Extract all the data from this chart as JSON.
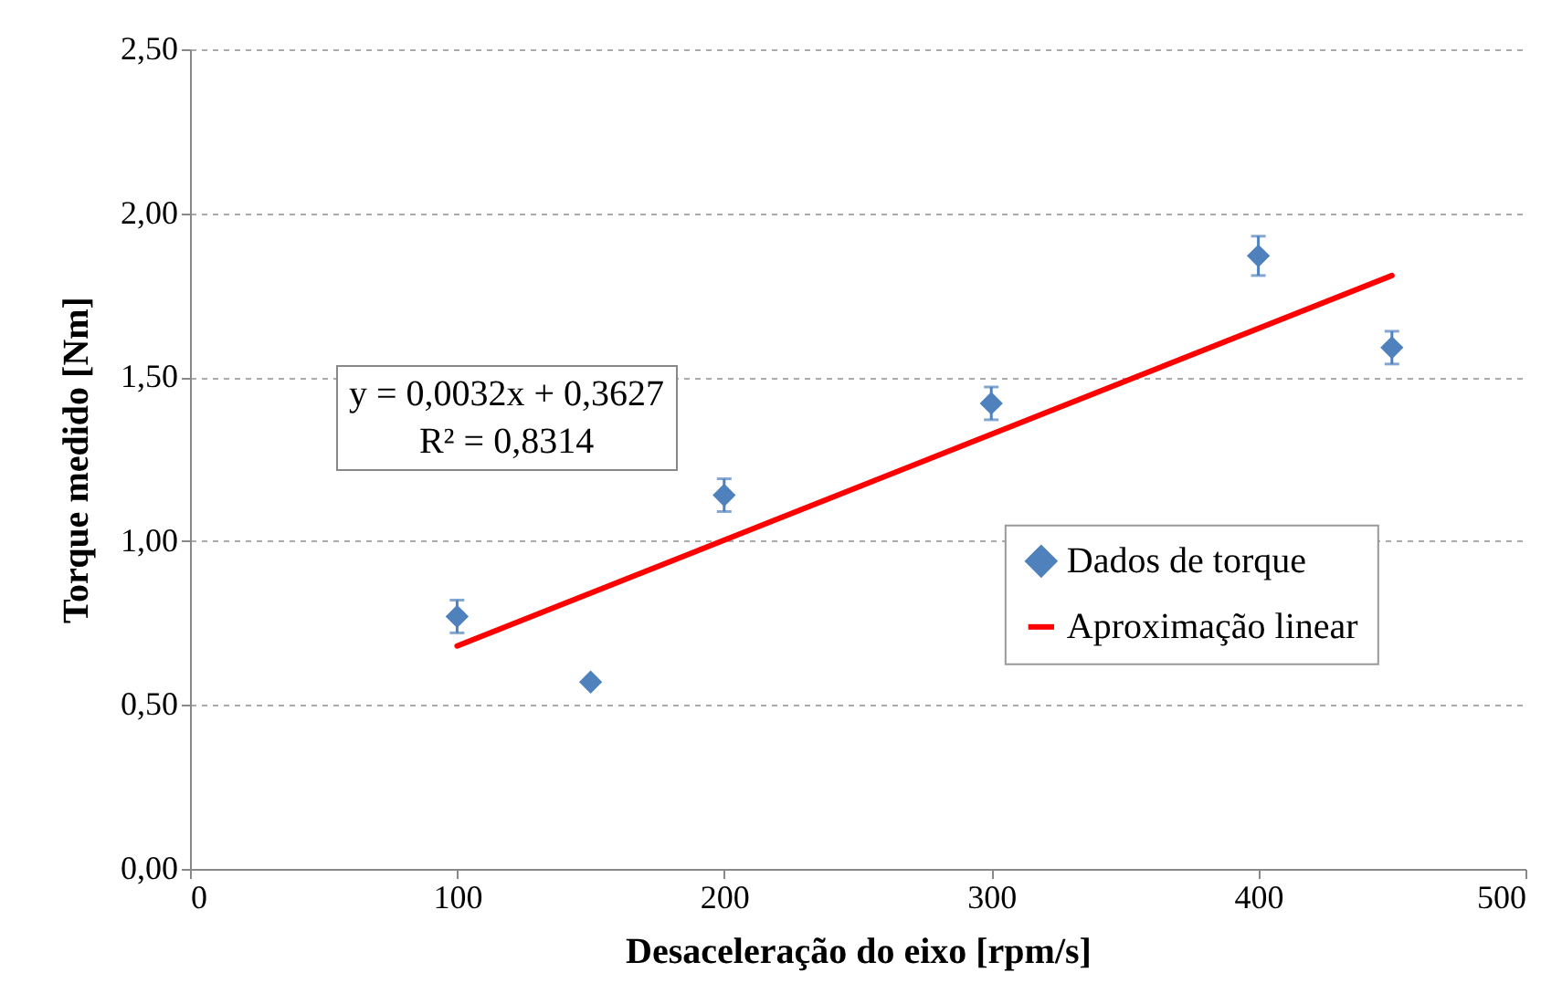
{
  "chart_data": {
    "type": "scatter",
    "xlabel": "Desaceleração do eixo [rpm/s]",
    "ylabel": "Torque medido [Nm]",
    "xlim": [
      0,
      500
    ],
    "xticks": [
      0,
      100,
      200,
      300,
      400,
      500
    ],
    "ylim": [
      0,
      2.5
    ],
    "yticks": [
      {
        "value": 0,
        "label": "0,00"
      },
      {
        "value": 0.5,
        "label": "0,50"
      },
      {
        "value": 1,
        "label": "1,00"
      },
      {
        "value": 1.5,
        "label": "1,50"
      },
      {
        "value": 2,
        "label": "2,00"
      },
      {
        "value": 2.5,
        "label": "2,50"
      }
    ],
    "grid": "y",
    "legend": "right",
    "annotations": [
      "y = 0,0032x + 0,3627",
      "R² = 0,8314"
    ],
    "series": [
      {
        "name": "Dados de torque",
        "marker": "diamond",
        "color": "#4f81bd",
        "x": [
          100,
          150,
          200,
          300,
          400,
          450
        ],
        "values": [
          0.77,
          0.57,
          1.14,
          1.42,
          1.87,
          1.59
        ],
        "errors": [
          0.05,
          null,
          0.05,
          0.05,
          0.06,
          0.05
        ]
      },
      {
        "name": "Aproximação linear",
        "type": "line",
        "color": "#ff0000",
        "x": [
          100,
          450
        ],
        "values": [
          0.68,
          1.81
        ]
      }
    ]
  }
}
